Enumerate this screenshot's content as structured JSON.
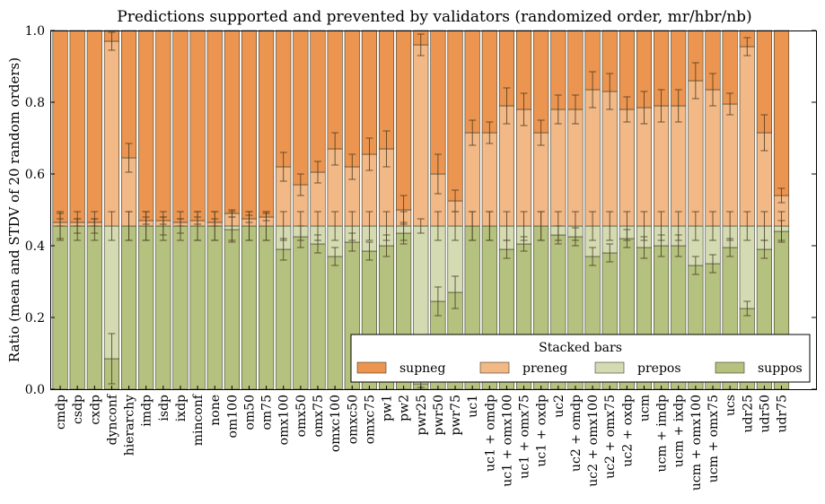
{
  "chart_data": {
    "type": "bar",
    "stacked": true,
    "title": "Predictions supported and prevented by validators (randomized order, mr/hbr/nb)",
    "xlabel": "",
    "ylabel": "Ratio (mean and STDV of 20 random orders)",
    "ylim": [
      0,
      1
    ],
    "yticks": [
      "0.0",
      "0.2",
      "0.4",
      "0.6",
      "0.8",
      "1.0"
    ],
    "grid": false,
    "legend": {
      "title": "Stacked bars",
      "placement": "lower-right",
      "entries": [
        "supneg",
        "preneg",
        "prepos",
        "suppos"
      ]
    },
    "colors": {
      "supneg": "#ec9550",
      "preneg": "#f2b886",
      "prepos": "#d4dbb2",
      "suppos": "#b5c17e"
    },
    "categories": [
      "cmdp",
      "csdp",
      "cxdp",
      "dynconf",
      "hierarchy",
      "imdp",
      "isdp",
      "ixdp",
      "minconf",
      "none",
      "om100",
      "om50",
      "om75",
      "omx100",
      "omx50",
      "omx75",
      "omxc100",
      "omxc50",
      "omxc75",
      "pw1",
      "pw2",
      "pwr25",
      "pwr50",
      "pwr75",
      "uc1",
      "uc1 + omdp",
      "uc1 + omx100",
      "uc1 + omx75",
      "uc1 + oxdp",
      "uc2",
      "uc2 + omdp",
      "uc2 + omx100",
      "uc2 + omx75",
      "uc2 + oxdp",
      "ucm",
      "ucm + imdp",
      "ucm + ixdp",
      "ucm + omx100",
      "ucm + omx75",
      "ucs",
      "udr25",
      "udr50",
      "udr75"
    ],
    "series": [
      {
        "name": "suppos",
        "values": [
          0.455,
          0.455,
          0.455,
          0.085,
          0.455,
          0.455,
          0.455,
          0.455,
          0.455,
          0.455,
          0.445,
          0.455,
          0.455,
          0.39,
          0.425,
          0.405,
          0.37,
          0.41,
          0.385,
          0.4,
          0.435,
          0.015,
          0.245,
          0.27,
          0.455,
          0.455,
          0.39,
          0.405,
          0.455,
          0.43,
          0.425,
          0.37,
          0.38,
          0.42,
          0.395,
          0.4,
          0.4,
          0.345,
          0.35,
          0.395,
          0.225,
          0.39,
          0.44
        ]
      },
      {
        "name": "prepos",
        "values": [
          0,
          0,
          0,
          0.37,
          0,
          0,
          0,
          0,
          0,
          0,
          0.01,
          0,
          0,
          0.065,
          0.03,
          0.05,
          0.085,
          0.045,
          0.07,
          0.055,
          0.02,
          0.44,
          0.21,
          0.185,
          0,
          0,
          0.065,
          0.05,
          0,
          0.025,
          0.03,
          0.085,
          0.075,
          0.035,
          0.06,
          0.055,
          0.055,
          0.11,
          0.105,
          0.06,
          0.23,
          0.065,
          0.015
        ]
      },
      {
        "name": "preneg",
        "values": [
          0.01,
          0.01,
          0.01,
          0.515,
          0.19,
          0.015,
          0.015,
          0.01,
          0.015,
          0.01,
          0.035,
          0.02,
          0.025,
          0.165,
          0.115,
          0.15,
          0.215,
          0.165,
          0.2,
          0.215,
          0.045,
          0.505,
          0.145,
          0.07,
          0.26,
          0.26,
          0.335,
          0.325,
          0.26,
          0.325,
          0.325,
          0.38,
          0.375,
          0.325,
          0.33,
          0.335,
          0.335,
          0.405,
          0.38,
          0.34,
          0.5,
          0.26,
          0.085
        ]
      },
      {
        "name": "supneg",
        "values": [
          0.535,
          0.535,
          0.535,
          0.03,
          0.355,
          0.53,
          0.53,
          0.535,
          0.53,
          0.535,
          0.51,
          0.525,
          0.52,
          0.38,
          0.43,
          0.395,
          0.33,
          0.38,
          0.345,
          0.33,
          0.5,
          0.04,
          0.4,
          0.475,
          0.285,
          0.285,
          0.21,
          0.22,
          0.285,
          0.22,
          0.22,
          0.165,
          0.17,
          0.22,
          0.215,
          0.21,
          0.21,
          0.14,
          0.165,
          0.205,
          0.045,
          0.285,
          0.46
        ]
      }
    ],
    "errors": {
      "suppos": [
        0.035,
        0.02,
        0.02,
        0.07,
        0.04,
        0.04,
        0.025,
        0.02,
        0.04,
        0.04,
        0.035,
        0.04,
        0.04,
        0.03,
        0.03,
        0.025,
        0.025,
        0.025,
        0.025,
        0.03,
        0.03,
        0.01,
        0.04,
        0.045,
        0.04,
        0.04,
        0.025,
        0.02,
        0.04,
        0.025,
        0.025,
        0.025,
        0.025,
        0.025,
        0.03,
        0.03,
        0.03,
        0.025,
        0.025,
        0.025,
        0.02,
        0.025,
        0.03
      ],
      "prepos": [
        0.04,
        0.04,
        0.04,
        0.04,
        0.04,
        0.04,
        0.04,
        0.04,
        0.04,
        0.04,
        0.04,
        0.04,
        0.04,
        0.04,
        0.04,
        0.04,
        0.04,
        0.04,
        0.04,
        0.04,
        0.04,
        0.02,
        0.04,
        0.04,
        0.04,
        0.04,
        0.04,
        0.04,
        0.04,
        0.04,
        0.04,
        0.04,
        0.04,
        0.04,
        0.04,
        0.04,
        0.04,
        0.04,
        0.04,
        0.04,
        0.04,
        0.04,
        0.04
      ],
      "preneg": [
        0.01,
        0.01,
        0.01,
        0.025,
        0.04,
        0.01,
        0.01,
        0.01,
        0.01,
        0.01,
        0.01,
        0.01,
        0.01,
        0.04,
        0.03,
        0.03,
        0.045,
        0.035,
        0.045,
        0.05,
        0.04,
        0.03,
        0.055,
        0.03,
        0.035,
        0.03,
        0.05,
        0.045,
        0.035,
        0.04,
        0.04,
        0.05,
        0.05,
        0.035,
        0.045,
        0.045,
        0.045,
        0.05,
        0.045,
        0.03,
        0.025,
        0.05,
        0.02
      ]
    }
  }
}
